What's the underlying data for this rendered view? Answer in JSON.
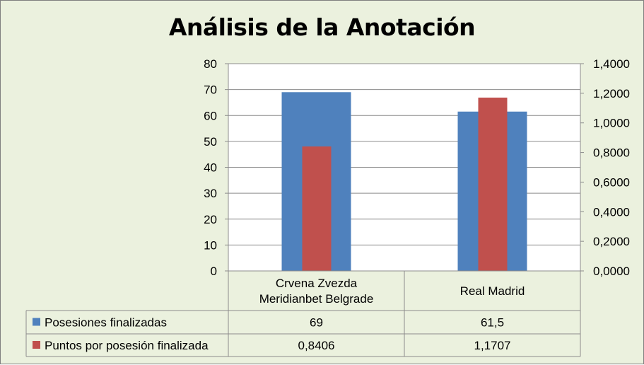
{
  "chart_data": {
    "type": "bar",
    "title": "Análisis de la Anotación",
    "categories": [
      [
        "Crvena Zvezda",
        "Meridianbet Belgrade"
      ],
      [
        "Real Madrid"
      ]
    ],
    "series": [
      {
        "name": "Posesiones finalizadas",
        "axis": "left",
        "color": "#4f81bd",
        "values": [
          69,
          61.5
        ],
        "labels": [
          "69",
          "61,5"
        ]
      },
      {
        "name": "Puntos por posesión finalizada",
        "axis": "right",
        "color": "#c0504d",
        "values": [
          0.8406,
          1.1707
        ],
        "labels": [
          "0,8406",
          "1,1707"
        ]
      }
    ],
    "y_left": {
      "range": [
        0,
        80
      ],
      "ticks": [
        0,
        10,
        20,
        30,
        40,
        50,
        60,
        70,
        80
      ],
      "tick_labels": [
        "0",
        "10",
        "20",
        "30",
        "40",
        "50",
        "60",
        "70",
        "80"
      ]
    },
    "y_right": {
      "range": [
        0,
        1.4
      ],
      "ticks": [
        0,
        0.2,
        0.4,
        0.6,
        0.8,
        1.0,
        1.2,
        1.4
      ],
      "tick_labels": [
        "0,0000",
        "0,2000",
        "0,4000",
        "0,6000",
        "0,8000",
        "1,0000",
        "1,2000",
        "1,4000"
      ]
    },
    "grid": true,
    "legend": "data-table"
  }
}
